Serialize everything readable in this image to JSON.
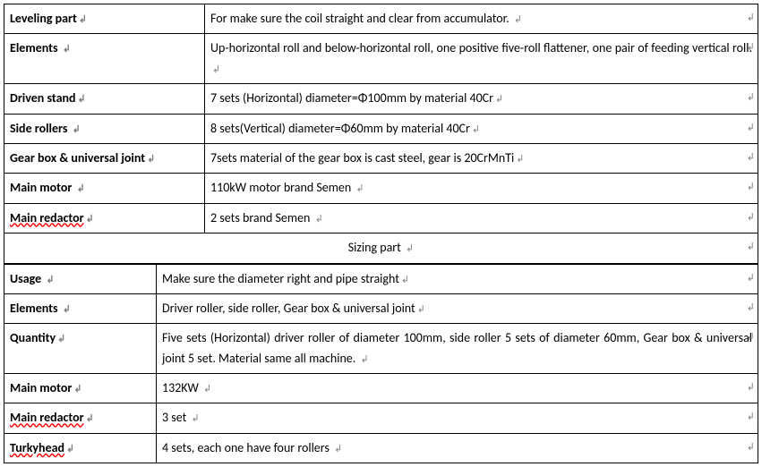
{
  "marks": {
    "para": "↲",
    "cell": "↲",
    "row": "←"
  },
  "table1": {
    "col1_width": 224,
    "rows": [
      {
        "label": "Leveling part",
        "value": "For make sure the coil straight and clear from accumulator. ",
        "justify": false,
        "spell_label": false
      },
      {
        "label": "Elements ",
        "value": "Up-horizontal roll and below-horizontal roll, one positive five-roll flattener, one pair of feeding vertical roll. ",
        "justify": true,
        "spell_label": false
      },
      {
        "label": "Driven stand",
        "value": "7 sets (Horizontal) diameter=Φ100mm by material 40Cr",
        "justify": false,
        "spell_label": false
      },
      {
        "label": "Side rollers ",
        "value": "8 sets(Vertical)    diameter=Φ60mm by material 40Cr",
        "justify": false,
        "spell_label": false
      },
      {
        "label": "Gear box & universal joint",
        "value": "7sets material of the gear box is cast steel, gear is 20CrMnTi",
        "justify": false,
        "spell_label": false
      },
      {
        "label": "Main motor ",
        "value": "110kW    motor brand Semen  ",
        "justify": false,
        "spell_label": false
      },
      {
        "label": "Main redactor",
        "value": "2 sets    brand Semen    ",
        "justify": false,
        "spell_label": true
      }
    ]
  },
  "section_header": "Sizing part ",
  "table2": {
    "col1_width": 170,
    "rows": [
      {
        "label": "Usage ",
        "value": "Make sure the diameter right and pipe straight",
        "justify": false,
        "spell_label": false
      },
      {
        "label": "Elements ",
        "value": "Driver roller, side roller, Gear box & universal joint",
        "justify": false,
        "spell_label": false
      },
      {
        "label": "Quantity",
        "value": "Five sets (Horizontal) driver roller of diameter 100mm, side roller 5 sets of diameter 60mm, Gear box & universal joint 5 set. Material same all machine. ",
        "justify": true,
        "spell_label": false
      },
      {
        "label": "Main motor",
        "value": "132KW ",
        "justify": false,
        "spell_label": false
      },
      {
        "label": "Main redactor",
        "value": "3 set ",
        "justify": false,
        "spell_label": true
      },
      {
        "label": "Turkyhead",
        "value": "4 sets, each one have four rollers ",
        "justify": false,
        "spell_label": true
      }
    ]
  },
  "styling": {
    "font_family": "Calibri, Arial, sans-serif",
    "font_size_pt": 11,
    "text_color": "#000000",
    "border_color": "#000000",
    "background_color": "#ffffff",
    "para_mark_color": "#808080",
    "spell_wave_color": "#ff0000"
  }
}
